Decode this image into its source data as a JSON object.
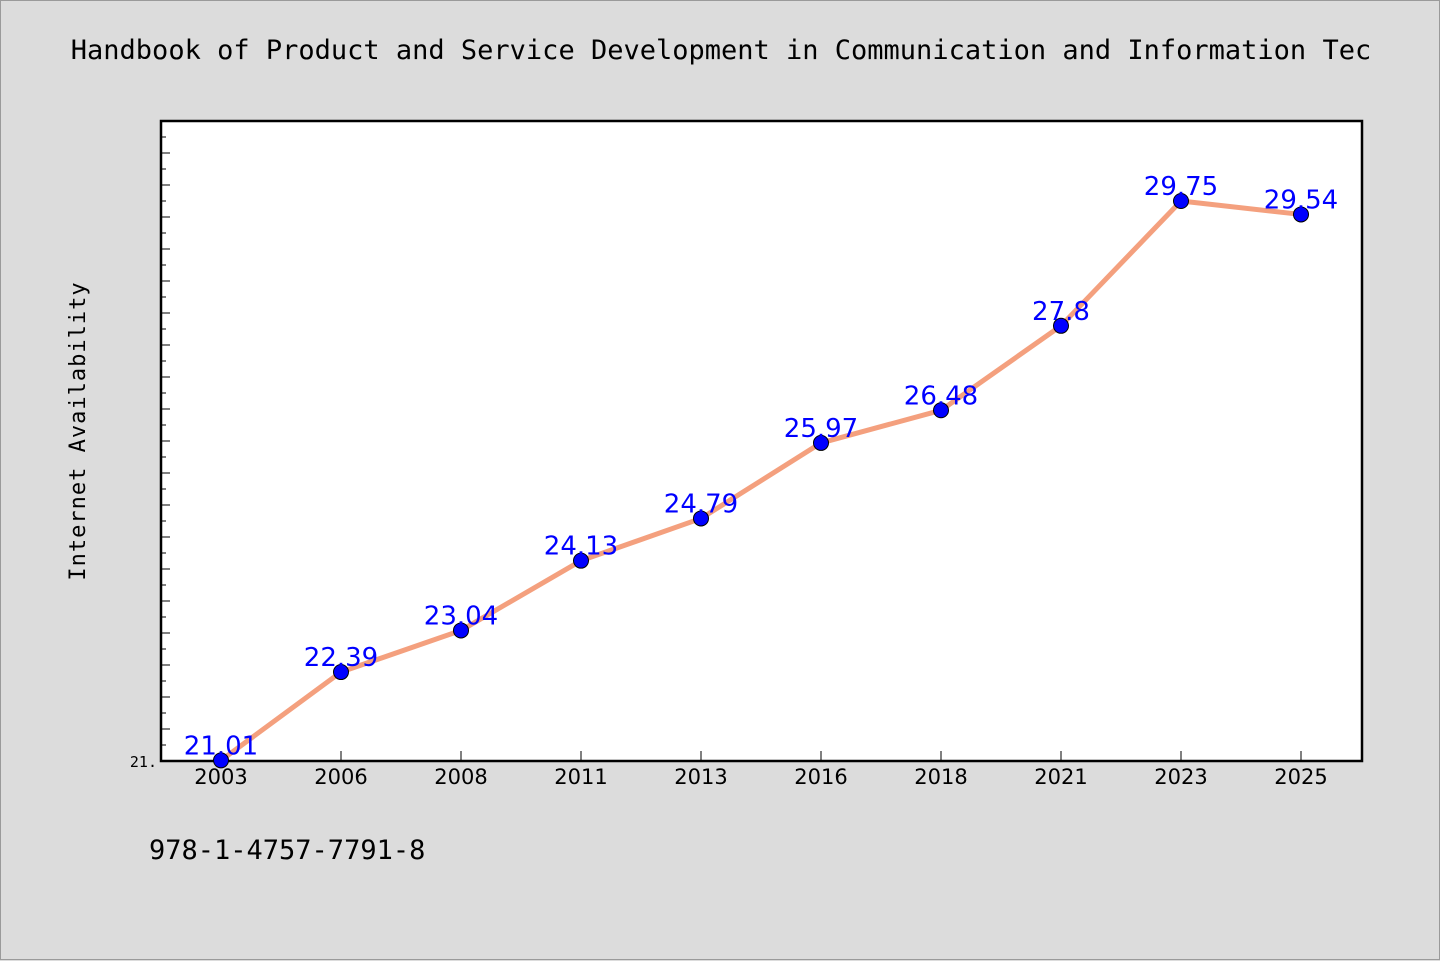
{
  "figure": {
    "title": "Handbook of Product and Service Development in Communication and Information Tec",
    "footer_text": "978-1-4757-7791-8"
  },
  "chart_data": {
    "type": "line",
    "title": "Handbook of Product and Service Development in Communication and Information Tec",
    "xlabel": "",
    "ylabel": "Internet Availability",
    "categories": [
      "2003",
      "2006",
      "2008",
      "2011",
      "2013",
      "2016",
      "2018",
      "2021",
      "2023",
      "2025"
    ],
    "values": [
      21.01,
      22.39,
      23.04,
      24.13,
      24.79,
      25.97,
      26.48,
      27.8,
      29.75,
      29.54
    ],
    "data_labels": [
      "21.01",
      "22.39",
      "23.04",
      "24.13",
      "24.79",
      "25.97",
      "26.48",
      "27.8",
      "29.75",
      "29.54"
    ],
    "ylim": [
      21.0,
      31.0
    ],
    "ytick_labels": [
      {
        "value": 21.0,
        "label": "21."
      }
    ],
    "grid": false,
    "legend": "none",
    "colors": {
      "line": "#f4a07e",
      "marker": "#0000ff",
      "data_label": "#0000ff",
      "plot_background": "#ffffff",
      "figure_background": "#dcdcdc"
    }
  }
}
